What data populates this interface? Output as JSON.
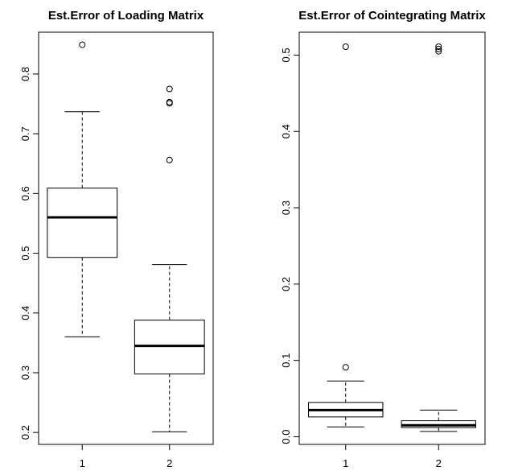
{
  "chart_data": [
    {
      "type": "boxplot",
      "title": "Est.Error of Loading Matrix",
      "xlabel": "",
      "ylabel": "",
      "ylim": [
        0.18,
        0.87
      ],
      "yticks": [
        0.2,
        0.3,
        0.4,
        0.5,
        0.6,
        0.7,
        0.8
      ],
      "ytick_labels": [
        "0.2",
        "0.3",
        "0.4",
        "0.5",
        "0.6",
        "0.7",
        "0.8"
      ],
      "categories": [
        "1",
        "2"
      ],
      "boxes": [
        {
          "label": "1",
          "whisker_low": 0.36,
          "q1": 0.493,
          "median": 0.56,
          "q3": 0.609,
          "whisker_high": 0.737,
          "outliers": [
            0.849
          ]
        },
        {
          "label": "2",
          "whisker_low": 0.201,
          "q1": 0.298,
          "median": 0.345,
          "q3": 0.388,
          "whisker_high": 0.481,
          "outliers": [
            0.656,
            0.751,
            0.753,
            0.775
          ]
        }
      ]
    },
    {
      "type": "boxplot",
      "title": "Est.Error of Cointegrating Matrix",
      "xlabel": "",
      "ylabel": "",
      "ylim": [
        -0.01,
        0.53
      ],
      "yticks": [
        0.0,
        0.1,
        0.2,
        0.3,
        0.4,
        0.5
      ],
      "ytick_labels": [
        "0.0",
        "0.1",
        "0.2",
        "0.3",
        "0.4",
        "0.5"
      ],
      "categories": [
        "1",
        "2"
      ],
      "boxes": [
        {
          "label": "1",
          "whisker_low": 0.013,
          "q1": 0.026,
          "median": 0.035,
          "q3": 0.045,
          "whisker_high": 0.073,
          "outliers": [
            0.091,
            0.511
          ]
        },
        {
          "label": "2",
          "whisker_low": 0.007,
          "q1": 0.012,
          "median": 0.015,
          "q3": 0.021,
          "whisker_high": 0.035,
          "outliers": [
            0.505,
            0.508,
            0.511
          ]
        }
      ]
    }
  ]
}
